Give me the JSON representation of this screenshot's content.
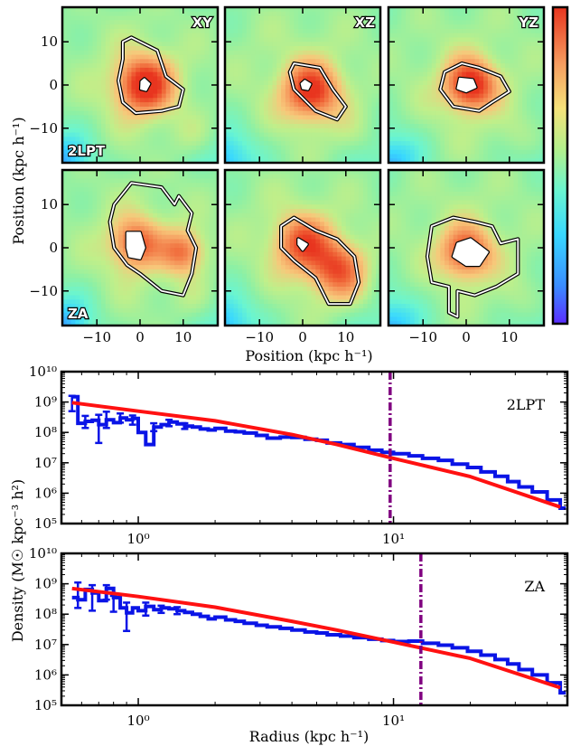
{
  "chart_data": [
    {
      "type": "heatmap",
      "panels": [
        {
          "label": "XY",
          "row": 0,
          "col": 0,
          "row_label": "2LPT",
          "peaks": [
            {
              "x": 1,
              "y": 0,
              "amp": 0.55,
              "s": 4.5
            }
          ],
          "outer": [
            [
              -2,
              11
            ],
            [
              4,
              8
            ],
            [
              6,
              2
            ],
            [
              10,
              -1
            ],
            [
              9,
              -5
            ],
            [
              5,
              -6
            ],
            [
              -1,
              -6.5
            ],
            [
              -4,
              -4
            ],
            [
              -5,
              1
            ],
            [
              -4,
              6
            ],
            [
              -4,
              10
            ]
          ],
          "inner": [
            [
              1,
              1.4
            ],
            [
              2.2,
              0.3
            ],
            [
              1.4,
              -1.2
            ],
            [
              0.2,
              -0.9
            ],
            [
              0.3,
              0.8
            ]
          ]
        },
        {
          "label": "XZ",
          "row": 0,
          "col": 1,
          "peaks": [
            {
              "x": 2,
              "y": -1.5,
              "amp": 0.5,
              "s": 4.5
            }
          ],
          "outer": [
            [
              -2,
              5
            ],
            [
              4,
              4
            ],
            [
              7,
              -1
            ],
            [
              10,
              -5
            ],
            [
              8,
              -8
            ],
            [
              3,
              -6
            ],
            [
              -2,
              -1
            ],
            [
              -3,
              3
            ]
          ],
          "inner": [
            [
              0.5,
              1
            ],
            [
              1.8,
              0.2
            ],
            [
              1.2,
              -1
            ],
            [
              0,
              -0.8
            ],
            [
              -0.3,
              0.3
            ]
          ]
        },
        {
          "label": "YZ",
          "row": 0,
          "col": 2,
          "peaks": [
            {
              "x": 1,
              "y": 0,
              "amp": 0.55,
              "s": 4
            }
          ],
          "outer": [
            [
              -5,
              3
            ],
            [
              -1,
              5
            ],
            [
              3,
              4
            ],
            [
              8,
              2
            ],
            [
              10,
              -1.5
            ],
            [
              6,
              -4
            ],
            [
              3,
              -6
            ],
            [
              -3,
              -5
            ],
            [
              -6,
              -1
            ]
          ],
          "inner": [
            [
              -1.5,
              1.5
            ],
            [
              1.5,
              1.2
            ],
            [
              2.2,
              -0.5
            ],
            [
              0,
              -1.5
            ],
            [
              -2,
              -0.8
            ]
          ]
        },
        {
          "label": "",
          "row": 1,
          "col": 0,
          "row_label": "ZA",
          "peaks": [
            {
              "x": -1,
              "y": 1,
              "amp": 0.4,
              "s": 4
            },
            {
              "x": 10,
              "y": -1,
              "amp": 0.35,
              "s": 3.5
            }
          ],
          "outer": [
            [
              -6,
              10
            ],
            [
              -2,
              15
            ],
            [
              5,
              14
            ],
            [
              8,
              10
            ],
            [
              9,
              12
            ],
            [
              12,
              8
            ],
            [
              11,
              4
            ],
            [
              13,
              0
            ],
            [
              12,
              -6
            ],
            [
              10,
              -11
            ],
            [
              5,
              -10
            ],
            [
              0,
              -6
            ],
            [
              -3,
              -4
            ],
            [
              -6,
              0
            ],
            [
              -7,
              6
            ]
          ],
          "inner": [
            [
              -3,
              3.5
            ],
            [
              0,
              3.5
            ],
            [
              1,
              0
            ],
            [
              0,
              -2.5
            ],
            [
              -2.5,
              -2
            ],
            [
              -3,
              0
            ]
          ]
        },
        {
          "label": "",
          "row": 1,
          "col": 1,
          "peaks": [
            {
              "x": 0,
              "y": 1,
              "amp": 0.4,
              "s": 4.5
            },
            {
              "x": 8,
              "y": -5,
              "amp": 0.4,
              "s": 4.5
            }
          ],
          "outer": [
            [
              -5,
              5
            ],
            [
              -2,
              7
            ],
            [
              3,
              4
            ],
            [
              8,
              2
            ],
            [
              12,
              -2
            ],
            [
              13,
              -8
            ],
            [
              11,
              -13
            ],
            [
              6,
              -13
            ],
            [
              3,
              -7
            ],
            [
              -2,
              -3
            ],
            [
              -5,
              0
            ]
          ],
          "inner": [
            [
              -1,
              2
            ],
            [
              1,
              0.8
            ],
            [
              0,
              -0.5
            ],
            [
              -1,
              0.8
            ]
          ]
        },
        {
          "label": "",
          "row": 1,
          "col": 2,
          "peaks": [
            {
              "x": 0,
              "y": -1,
              "amp": 0.45,
              "s": 4
            }
          ],
          "outer": [
            [
              -8,
              5
            ],
            [
              -3,
              7
            ],
            [
              2,
              6
            ],
            [
              6,
              5
            ],
            [
              8,
              1
            ],
            [
              12,
              2
            ],
            [
              12,
              -6
            ],
            [
              7,
              -9
            ],
            [
              2,
              -11
            ],
            [
              -2,
              -10
            ],
            [
              -2,
              -16
            ],
            [
              -4,
              -15
            ],
            [
              -4,
              -9
            ],
            [
              -8,
              -8
            ],
            [
              -9,
              -2
            ]
          ],
          "inner": [
            [
              -2,
              1
            ],
            [
              1,
              2
            ],
            [
              5,
              -1
            ],
            [
              3,
              -4
            ],
            [
              0,
              -4
            ],
            [
              -3,
              -2
            ]
          ]
        }
      ],
      "xlim": [
        -18,
        18
      ],
      "ylim": [
        -18,
        18
      ],
      "xticks": [
        -10,
        0,
        10
      ],
      "yticks": [
        -10,
        0,
        10
      ],
      "xlabel": "Position (kpc h⁻¹)",
      "ylabel": "Position (kpc h⁻¹)",
      "colormap": [
        "#5b2cff",
        "#3a8cff",
        "#38d8ff",
        "#6af5d0",
        "#8cf0a5",
        "#c0ef8a",
        "#f7c87a",
        "#f69d60",
        "#f06a3a",
        "#e8351f"
      ]
    },
    {
      "type": "line",
      "panels": [
        {
          "label": "2LPT",
          "vline": 9.7,
          "step": {
            "x": [
              0.55,
              0.58,
              0.62,
              0.66,
              0.7,
              0.75,
              0.8,
              0.85,
              0.9,
              0.95,
              1.0,
              1.07,
              1.15,
              1.23,
              1.32,
              1.42,
              1.52,
              1.63,
              1.75,
              1.88,
              2.0,
              2.2,
              2.4,
              2.6,
              2.9,
              3.2,
              3.6,
              4.0,
              4.5,
              5.0,
              5.5,
              6.2,
              7.0,
              8.0,
              9.0,
              10.0,
              11.5,
              13.0,
              15.0,
              17.0,
              19.5,
              22.0,
              25.0,
              28.0,
              31.0,
              35.0,
              40.0,
              45.0
            ],
            "y": [
              1500000000.0,
              200000000.0,
              230000000.0,
              250000000.0,
              180000000.0,
              260000000.0,
              210000000.0,
              300000000.0,
              260000000.0,
              290000000.0,
              100000000.0,
              40000000.0,
              150000000.0,
              180000000.0,
              220000000.0,
              190000000.0,
              160000000.0,
              150000000.0,
              130000000.0,
              120000000.0,
              135000000.0,
              110000000.0,
              105000000.0,
              95000000.0,
              80000000.0,
              65000000.0,
              70000000.0,
              68000000.0,
              60000000.0,
              55000000.0,
              45000000.0,
              40000000.0,
              32000000.0,
              26000000.0,
              22000000.0,
              20000000.0,
              17000000.0,
              14000000.0,
              12000000.0,
              9000000.0,
              7000000.0,
              5000000.0,
              3600000.0,
              2400000.0,
              1600000.0,
              1100000.0,
              600000.0,
              320000.0
            ]
          },
          "errorbars": [
            {
              "x": 0.55,
              "y": 1100000000.0,
              "lo": 500000000.0,
              "hi": 1600000000.0
            },
            {
              "x": 0.62,
              "y": 230000000.0,
              "lo": 140000000.0,
              "hi": 350000000.0
            },
            {
              "x": 0.7,
              "y": 200000000.0,
              "lo": 45000000.0,
              "hi": 380000000.0
            },
            {
              "x": 0.75,
              "y": 300000000.0,
              "lo": 140000000.0,
              "hi": 480000000.0
            },
            {
              "x": 0.85,
              "y": 320000000.0,
              "lo": 210000000.0,
              "hi": 420000000.0
            },
            {
              "x": 0.95,
              "y": 280000000.0,
              "lo": 180000000.0,
              "hi": 360000000.0
            },
            {
              "x": 1.15,
              "y": 150000000.0,
              "lo": 110000000.0,
              "hi": 200000000.0
            },
            {
              "x": 1.32,
              "y": 220000000.0,
              "lo": 160000000.0,
              "hi": 260000000.0
            },
            {
              "x": 1.52,
              "y": 160000000.0,
              "lo": 130000000.0,
              "hi": 200000000.0
            }
          ],
          "fit": {
            "x": [
              0.55,
              1.0,
              2.0,
              4.0,
              6.0,
              10.0,
              20.0,
              45.0
            ],
            "y": [
              950000000.0,
              500000000.0,
              240000000.0,
              85000000.0,
              40000000.0,
              14000000.0,
              3500000.0,
              350000.0
            ]
          }
        },
        {
          "label": "ZA",
          "vline": 12.8,
          "step": {
            "x": [
              0.55,
              0.58,
              0.62,
              0.66,
              0.7,
              0.75,
              0.8,
              0.85,
              0.9,
              0.95,
              1.0,
              1.07,
              1.15,
              1.23,
              1.32,
              1.42,
              1.52,
              1.63,
              1.75,
              1.88,
              2.0,
              2.2,
              2.4,
              2.6,
              2.9,
              3.2,
              3.6,
              4.0,
              4.5,
              5.0,
              5.5,
              6.2,
              7.0,
              8.0,
              9.0,
              10.0,
              11.5,
              13.0,
              15.0,
              17.0,
              19.5,
              22.0,
              25.0,
              28.0,
              31.0,
              35.0,
              40.0,
              45.0
            ],
            "y": [
              350000000.0,
              300000000.0,
              650000000.0,
              500000000.0,
              280000000.0,
              700000000.0,
              350000000.0,
              160000000.0,
              110000000.0,
              160000000.0,
              130000000.0,
              180000000.0,
              140000000.0,
              160000000.0,
              150000000.0,
              130000000.0,
              115000000.0,
              100000000.0,
              85000000.0,
              70000000.0,
              80000000.0,
              65000000.0,
              58000000.0,
              50000000.0,
              43000000.0,
              38000000.0,
              34000000.0,
              30000000.0,
              26000000.0,
              24000000.0,
              21000000.0,
              19000000.0,
              17000000.0,
              15000000.0,
              13500000.0,
              12500000.0,
              13000000.0,
              11000000.0,
              9500000.0,
              7800000.0,
              6000000.0,
              4500000.0,
              3200000.0,
              2300000.0,
              1500000.0,
              1000000.0,
              550000.0,
              260000.0
            ]
          },
          "errorbars": [
            {
              "x": 0.58,
              "y": 350000000.0,
              "lo": 160000000.0,
              "hi": 1100000000.0
            },
            {
              "x": 0.66,
              "y": 550000000.0,
              "lo": 130000000.0,
              "hi": 900000000.0
            },
            {
              "x": 0.75,
              "y": 650000000.0,
              "lo": 300000000.0,
              "hi": 900000000.0
            },
            {
              "x": 0.8,
              "y": 250000000.0,
              "lo": 120000000.0,
              "hi": 400000000.0
            },
            {
              "x": 0.9,
              "y": 120000000.0,
              "lo": 28000000.0,
              "hi": 240000000.0
            },
            {
              "x": 1.07,
              "y": 160000000.0,
              "lo": 90000000.0,
              "hi": 240000000.0
            },
            {
              "x": 1.23,
              "y": 150000000.0,
              "lo": 110000000.0,
              "hi": 190000000.0
            },
            {
              "x": 1.42,
              "y": 130000000.0,
              "lo": 100000000.0,
              "hi": 170000000.0
            }
          ],
          "fit": {
            "x": [
              0.55,
              1.0,
              2.0,
              4.0,
              6.0,
              10.0,
              20.0,
              45.0
            ],
            "y": [
              700000000.0,
              380000000.0,
              170000000.0,
              58000000.0,
              30000000.0,
              12000000.0,
              3500000.0,
              380000.0
            ]
          }
        }
      ],
      "xlim": [
        0.5,
        48
      ],
      "ylim": [
        100000.0,
        10000000000.0
      ],
      "xscale": "log",
      "yscale": "log",
      "xticklabels": [
        "10⁰",
        "10¹"
      ],
      "yticklabels": [
        "10⁵",
        "10⁶",
        "10⁷",
        "10⁸",
        "10⁹",
        "10¹⁰"
      ],
      "xlabel": "Radius (kpc h⁻¹)",
      "ylabel": "Density (M☉ kpc⁻³ h²)",
      "colors": {
        "data": "#0a14e6",
        "fit": "#ff1111",
        "vline": "#800080"
      }
    }
  ]
}
